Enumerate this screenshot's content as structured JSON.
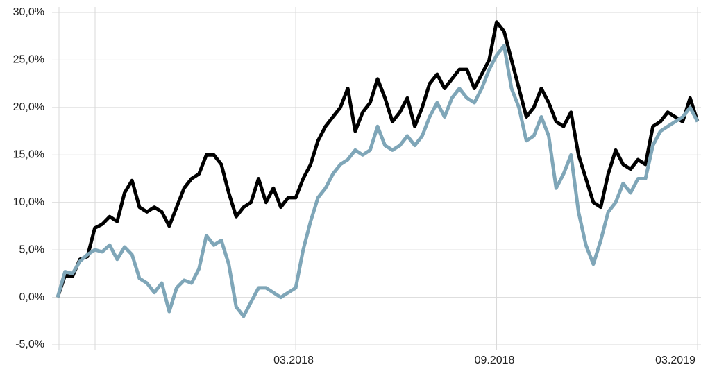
{
  "chart_data": {
    "type": "line",
    "categories": [
      null,
      null,
      null,
      null,
      null,
      null,
      null,
      null,
      null,
      null,
      null,
      null,
      null,
      null,
      null,
      null,
      null,
      null,
      null,
      null,
      null,
      null,
      null,
      null,
      null,
      null,
      null,
      null,
      null,
      null,
      null,
      null,
      "03.2018",
      null,
      null,
      null,
      null,
      null,
      null,
      null,
      null,
      null,
      null,
      null,
      null,
      null,
      null,
      null,
      null,
      null,
      null,
      null,
      null,
      null,
      null,
      null,
      null,
      null,
      null,
      "09.2018",
      null,
      null,
      null,
      null,
      null,
      null,
      null,
      null,
      null,
      null,
      null,
      null,
      null,
      null,
      null,
      null,
      null,
      null,
      null,
      null,
      null,
      null,
      null,
      null,
      null,
      null,
      "03.2019"
    ],
    "series": [
      {
        "color": "#000000",
        "values": [
          0,
          2.3,
          2.2,
          4.0,
          4.3,
          7.3,
          7.7,
          8.5,
          8.0,
          11.0,
          12.3,
          9.5,
          9.0,
          9.5,
          9.0,
          7.5,
          9.5,
          11.5,
          12.5,
          13.0,
          15.0,
          15.0,
          14.0,
          11.0,
          8.5,
          9.5,
          10.0,
          12.5,
          10.0,
          11.5,
          9.5,
          10.5,
          10.5,
          12.5,
          14.0,
          16.5,
          18.0,
          19.0,
          20.0,
          22.0,
          17.5,
          19.5,
          20.5,
          23.0,
          21.0,
          18.5,
          19.5,
          21.0,
          18.0,
          20.0,
          22.5,
          23.5,
          22.0,
          23.0,
          24.0,
          24.0,
          22.0,
          23.5,
          25.0,
          29.0,
          28.0,
          25.0,
          22.0,
          19.0,
          20.0,
          22.0,
          20.5,
          18.5,
          18.0,
          19.5,
          15.0,
          12.5,
          10.0,
          9.5,
          13.0,
          15.5,
          14.0,
          13.5,
          14.5,
          14.0,
          18.0,
          18.5,
          19.5,
          19.0,
          18.5,
          21.0,
          18.5
        ]
      },
      {
        "color": "#7fa6b8",
        "values": [
          0,
          2.7,
          2.5,
          3.8,
          4.5,
          5.0,
          4.8,
          5.5,
          4.0,
          5.3,
          4.5,
          2.0,
          1.5,
          0.5,
          1.5,
          -1.5,
          1.0,
          1.8,
          1.5,
          3.0,
          6.5,
          5.5,
          6.0,
          3.5,
          -1.0,
          -2.0,
          -0.5,
          1.0,
          1.0,
          0.5,
          0.0,
          0.5,
          1.0,
          5.0,
          8.0,
          10.5,
          11.5,
          13.0,
          14.0,
          14.5,
          15.5,
          15.0,
          15.5,
          18.0,
          16.0,
          15.5,
          16.0,
          17.0,
          16.0,
          17.0,
          19.0,
          20.5,
          19.0,
          21.0,
          22.0,
          21.0,
          20.5,
          22.0,
          24.0,
          25.5,
          26.5,
          22.0,
          20.0,
          16.5,
          17.0,
          19.0,
          17.0,
          11.5,
          13.0,
          15.0,
          9.0,
          5.5,
          3.5,
          6.0,
          9.0,
          10.0,
          12.0,
          11.0,
          12.5,
          12.5,
          16.0,
          17.5,
          18.0,
          18.5,
          19.0,
          20.0,
          18.5
        ]
      }
    ],
    "ylim": [
      -5,
      30
    ],
    "yticks": [
      {
        "value": -5,
        "label": "-5,0%"
      },
      {
        "value": 0,
        "label": "0,0%"
      },
      {
        "value": 5,
        "label": "5,0%"
      },
      {
        "value": 10,
        "label": "10,0%"
      },
      {
        "value": 15,
        "label": "15,0%"
      },
      {
        "value": 20,
        "label": "20,0%"
      },
      {
        "value": 25,
        "label": "25,0%"
      },
      {
        "value": 30,
        "label": "30,0%"
      }
    ],
    "grid": true
  }
}
